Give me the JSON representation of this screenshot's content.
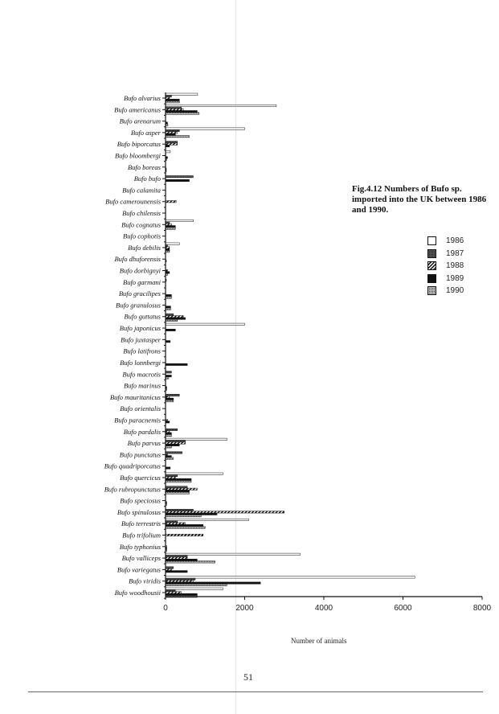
{
  "caption": "Fig.4.12 Numbers of Bufo sp. imported into the UK between 1986 and 1990.",
  "page_number": "51",
  "chart_data": {
    "type": "bar",
    "orientation": "horizontal",
    "title": "Fig.4.12 Numbers of Bufo sp. imported into the UK between 1986 and 1990.",
    "xlabel": "Number of animals",
    "ylabel": "",
    "xlim": [
      0,
      8000
    ],
    "xticks": [
      0,
      2000,
      4000,
      6000,
      8000
    ],
    "grid": false,
    "legend_placement": "right",
    "categories": [
      "Bufo alvarius",
      "Bufo americanus",
      "Bufo arenarum",
      "Bufo asper",
      "Bufo biporcatus",
      "Bufo bloombergi",
      "Bufo boreas",
      "Bufo bufo",
      "Bufo calamita",
      "Bufo camerounensis",
      "Bufo chilensis",
      "Bufo cognatus",
      "Bufo cophotis",
      "Bufo debilis",
      "Bufo dhuforensis",
      "Bufo dorbignyi",
      "Bufo garmani",
      "Bufo gracilipes",
      "Bufo granulosus",
      "Bufo guttatus",
      "Bufo japonicus",
      "Bufo juxtasper",
      "Bufo latifrons",
      "Bufo lonnbergi",
      "Bufo macrotis",
      "Bufo marinus",
      "Bufo mauritanicus",
      "Bufo orientalis",
      "Bufo paracnemis",
      "Bufo pardalis",
      "Bufo parvus",
      "Bufo punctatus",
      "Bufo quadriporcatus",
      "Bufo quercicus",
      "Bufo rubropunctatus",
      "Bufo speciosus",
      "Bufo spinulosus",
      "Bufo terrestris",
      "Bufo trifolium",
      "Bufo typhonius",
      "Bufo valliceps",
      "Bufo variegatus",
      "Bufo viridis",
      "Bufo woodhousii"
    ],
    "series": [
      {
        "name": "1986",
        "pattern": "white",
        "values": [
          810,
          2800,
          0,
          2000,
          0,
          120,
          0,
          0,
          0,
          0,
          0,
          700,
          0,
          350,
          0,
          0,
          0,
          0,
          0,
          0,
          2000,
          0,
          0,
          0,
          0,
          0,
          0,
          0,
          0,
          0,
          1550,
          0,
          0,
          1450,
          0,
          0,
          0,
          2100,
          0,
          0,
          3400,
          0,
          6300,
          1450
        ]
      },
      {
        "name": "1987",
        "pattern": "dark-stipple",
        "values": [
          150,
          400,
          0,
          350,
          300,
          0,
          0,
          700,
          0,
          0,
          0,
          100,
          0,
          50,
          0,
          0,
          20,
          0,
          0,
          200,
          0,
          0,
          0,
          0,
          150,
          0,
          350,
          0,
          0,
          300,
          500,
          420,
          0,
          300,
          550,
          0,
          700,
          300,
          0,
          0,
          550,
          200,
          750,
          250
        ]
      },
      {
        "name": "1988",
        "pattern": "hatch",
        "values": [
          100,
          450,
          0,
          300,
          300,
          0,
          0,
          0,
          0,
          270,
          0,
          150,
          0,
          100,
          0,
          50,
          0,
          0,
          0,
          450,
          0,
          0,
          0,
          0,
          0,
          0,
          100,
          0,
          50,
          100,
          500,
          50,
          0,
          250,
          800,
          0,
          3000,
          500,
          950,
          30,
          550,
          150,
          700,
          400
        ]
      },
      {
        "name": "1989",
        "pattern": "black",
        "values": [
          350,
          800,
          50,
          250,
          100,
          50,
          20,
          600,
          0,
          0,
          0,
          250,
          0,
          100,
          20,
          100,
          0,
          150,
          130,
          500,
          250,
          120,
          0,
          550,
          150,
          30,
          200,
          0,
          100,
          150,
          350,
          150,
          120,
          650,
          600,
          30,
          1300,
          950,
          0,
          30,
          800,
          550,
          2400,
          800
        ]
      },
      {
        "name": "1990",
        "pattern": "light-stipple",
        "values": [
          350,
          850,
          60,
          600,
          0,
          30,
          20,
          0,
          0,
          0,
          0,
          250,
          0,
          100,
          0,
          50,
          0,
          150,
          130,
          300,
          0,
          0,
          0,
          0,
          80,
          30,
          200,
          0,
          0,
          150,
          150,
          200,
          0,
          650,
          600,
          30,
          900,
          1000,
          0,
          30,
          1250,
          0,
          1550,
          800
        ]
      }
    ]
  }
}
